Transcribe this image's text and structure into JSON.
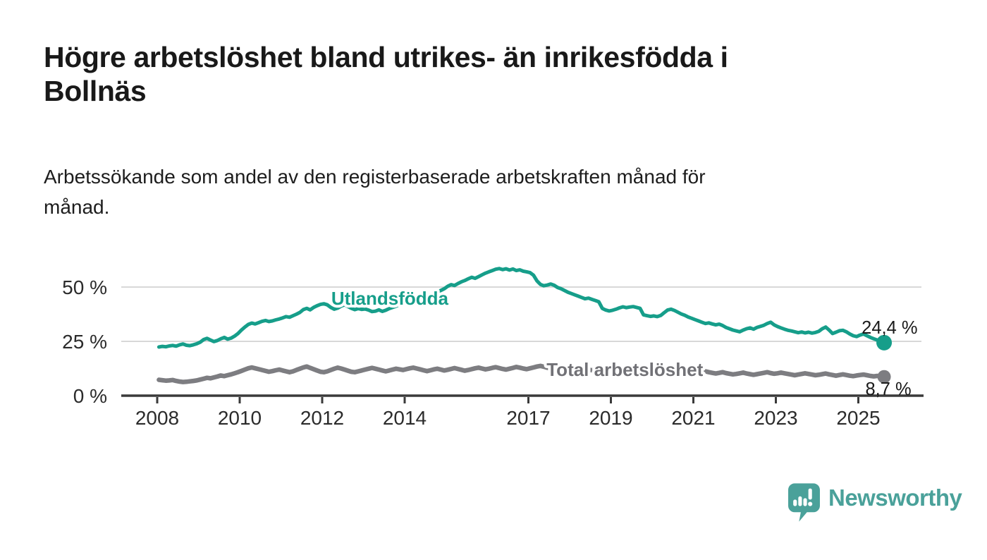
{
  "page": {
    "title_line1": "Högre arbetslöshet bland utrikes- än inrikesfödda i",
    "title_line2": "Bollnäs",
    "subtitle_line1": "Arbetssökande som andel av den registerbaserade arbetskraften månad för",
    "subtitle_line2": "månad."
  },
  "footer": {
    "brand": "Newsworthy"
  },
  "colors": {
    "accent_teal": "#169E8A",
    "line_gray": "#7D7D81",
    "gray_label": "#717176",
    "logo_teal": "#4AA19A",
    "axis": "#3A3A3A",
    "grid": "#D8D8D8",
    "tick_text": "#2B2B2B",
    "annotation_text": "#1A1A1A",
    "background": "#FFFFFF"
  },
  "chart_data": {
    "type": "line",
    "title": "Högre arbetslöshet bland utrikes- än inrikesfödda i Bollnäs",
    "subtitle": "Arbetssökande som andel av den registerbaserade arbetskraften månad för månad.",
    "x_unit": "monthly",
    "start_year": 2008,
    "xlim": [
      2007.1,
      2026.6
    ],
    "ylim": [
      0,
      62
    ],
    "grid": "horizontal",
    "legend_position": "inline-labels",
    "x_ticks": [
      {
        "year": 2008,
        "label": "2008"
      },
      {
        "year": 2010,
        "label": "2010"
      },
      {
        "year": 2012,
        "label": "2012"
      },
      {
        "year": 2014,
        "label": "2014"
      },
      {
        "year": 2017,
        "label": "2017"
      },
      {
        "year": 2019,
        "label": "2019"
      },
      {
        "year": 2021,
        "label": "2021"
      },
      {
        "year": 2023,
        "label": "2023"
      },
      {
        "year": 2025,
        "label": "2025"
      }
    ],
    "y_ticks": [
      {
        "value": 0,
        "label": "0 %"
      },
      {
        "value": 25,
        "label": "25 %"
      },
      {
        "value": 50,
        "label": "50 %"
      }
    ],
    "series": [
      {
        "name": "Utlandsfödda",
        "color": "#169E8A",
        "label_color": "#169E8A",
        "line_width": 5,
        "end_dot": true,
        "dot_radius": 11,
        "end_label": "24,4 %",
        "last_value": 24.4,
        "name_label_pos": {
          "year": 2012.22,
          "value": 44.8
        },
        "end_label_pos": {
          "year": 2025.08,
          "value": 28.6
        },
        "values": [
          22.4,
          22.7,
          22.5,
          22.9,
          23.1,
          22.8,
          23.4,
          23.8,
          23.2,
          23.0,
          23.4,
          23.9,
          24.6,
          25.8,
          26.4,
          25.6,
          24.9,
          25.4,
          26.2,
          26.8,
          26.0,
          26.5,
          27.4,
          28.6,
          30.2,
          31.6,
          32.8,
          33.4,
          33.0,
          33.6,
          34.2,
          34.6,
          34.1,
          34.4,
          34.9,
          35.3,
          35.8,
          36.4,
          36.1,
          36.8,
          37.5,
          38.3,
          39.6,
          40.2,
          39.5,
          40.6,
          41.4,
          42.0,
          42.3,
          41.8,
          40.6,
          39.8,
          40.3,
          41.2,
          41.8,
          41.0,
          40.2,
          39.6,
          40.1,
          39.7,
          39.9,
          39.4,
          38.7,
          38.9,
          39.5,
          38.8,
          39.3,
          40.1,
          40.6,
          41.2,
          41.9,
          42.5,
          43.1,
          43.8,
          44.2,
          44.9,
          45.5,
          45.0,
          45.8,
          46.6,
          47.1,
          47.8,
          48.4,
          49.2,
          50.3,
          51.1,
          50.7,
          51.6,
          52.4,
          53.0,
          53.8,
          54.5,
          54.0,
          54.8,
          55.6,
          56.4,
          57.0,
          57.6,
          58.2,
          58.5,
          58.0,
          58.4,
          57.8,
          58.3,
          57.6,
          57.9,
          57.3,
          57.0,
          56.6,
          55.4,
          52.8,
          51.2,
          50.6,
          50.9,
          51.4,
          50.8,
          49.8,
          49.2,
          48.4,
          47.6,
          47.0,
          46.4,
          45.8,
          45.2,
          44.6,
          44.9,
          44.3,
          43.8,
          43.2,
          40.2,
          39.4,
          39.0,
          39.3,
          39.8,
          40.4,
          40.9,
          40.5,
          40.8,
          41.0,
          40.6,
          40.2,
          37.2,
          36.8,
          36.5,
          36.7,
          36.4,
          36.9,
          38.2,
          39.4,
          39.8,
          39.2,
          38.4,
          37.6,
          37.0,
          36.2,
          35.6,
          35.0,
          34.4,
          33.8,
          33.2,
          33.5,
          33.0,
          32.6,
          32.9,
          32.3,
          31.4,
          30.8,
          30.2,
          29.8,
          29.4,
          30.2,
          30.8,
          31.2,
          30.6,
          31.4,
          31.9,
          32.4,
          33.2,
          33.8,
          32.6,
          31.8,
          31.2,
          30.6,
          30.1,
          29.8,
          29.4,
          29.0,
          29.3,
          28.9,
          29.2,
          28.8,
          29.1,
          29.6,
          30.8,
          31.6,
          30.2,
          28.6,
          29.2,
          29.9,
          30.1,
          29.4,
          28.4,
          27.6,
          27.2,
          27.9,
          28.4,
          27.6,
          26.8,
          26.2,
          25.6,
          25.0,
          24.4
        ]
      },
      {
        "name": "Total arbetslöshet",
        "color": "#7D7D81",
        "label_color": "#717176",
        "line_width": 6.5,
        "end_dot": true,
        "dot_radius": 9.5,
        "end_label": "8,7 %",
        "last_value": 8.7,
        "name_label_pos": {
          "year": 2017.44,
          "value": 12.0
        },
        "end_label_pos": {
          "year": 2025.17,
          "value": 0.3
        },
        "values": [
          7.3,
          7.1,
          6.9,
          7.0,
          7.2,
          6.8,
          6.5,
          6.3,
          6.4,
          6.6,
          6.8,
          7.0,
          7.4,
          7.8,
          8.2,
          8.0,
          8.4,
          8.8,
          9.3,
          9.0,
          9.4,
          9.8,
          10.3,
          10.8,
          11.4,
          12.0,
          12.6,
          13.0,
          12.6,
          12.2,
          11.8,
          11.4,
          11.0,
          11.3,
          11.7,
          12.0,
          11.6,
          11.2,
          10.8,
          11.2,
          11.8,
          12.4,
          13.0,
          13.4,
          12.8,
          12.2,
          11.6,
          11.0,
          10.8,
          11.2,
          11.8,
          12.4,
          12.9,
          12.5,
          12.0,
          11.5,
          11.0,
          10.8,
          11.2,
          11.6,
          12.0,
          12.4,
          12.8,
          12.4,
          12.0,
          11.6,
          11.2,
          11.6,
          12.0,
          12.4,
          12.1,
          11.8,
          12.2,
          12.6,
          12.9,
          12.5,
          12.1,
          11.7,
          11.3,
          11.7,
          12.1,
          12.4,
          12.0,
          11.6,
          11.9,
          12.3,
          12.7,
          12.3,
          11.9,
          11.5,
          11.8,
          12.2,
          12.6,
          12.9,
          12.5,
          12.1,
          12.4,
          12.8,
          13.1,
          12.7,
          12.3,
          12.0,
          12.4,
          12.8,
          13.2,
          12.9,
          12.5,
          12.2,
          12.6,
          13.0,
          13.4,
          13.7,
          13.3,
          12.9,
          12.5,
          12.9,
          13.3,
          13.6,
          13.2,
          12.8,
          12.5,
          12.9,
          13.2,
          12.8,
          12.4,
          12.0,
          11.7,
          12.0,
          12.4,
          12.1,
          11.8,
          11.5,
          11.8,
          12.1,
          12.4,
          12.0,
          11.6,
          11.3,
          11.6,
          11.9,
          12.2,
          11.8,
          11.4,
          11.1,
          11.4,
          11.7,
          12.1,
          12.6,
          13.0,
          12.7,
          12.3,
          12.0,
          11.7,
          11.4,
          11.1,
          10.8,
          11.0,
          11.3,
          11.6,
          11.2,
          10.8,
          10.5,
          10.2,
          10.5,
          10.8,
          10.4,
          10.1,
          9.8,
          10.0,
          10.3,
          10.6,
          10.2,
          9.9,
          9.6,
          9.9,
          10.2,
          10.5,
          10.8,
          10.4,
          10.1,
          10.3,
          10.6,
          10.3,
          10.0,
          9.7,
          9.4,
          9.7,
          10.0,
          10.3,
          10.0,
          9.7,
          9.4,
          9.6,
          9.9,
          10.2,
          9.8,
          9.5,
          9.2,
          9.5,
          9.8,
          9.5,
          9.2,
          9.0,
          9.3,
          9.5,
          9.7,
          9.4,
          9.1,
          8.9,
          9.1,
          8.9,
          8.7
        ]
      }
    ]
  }
}
